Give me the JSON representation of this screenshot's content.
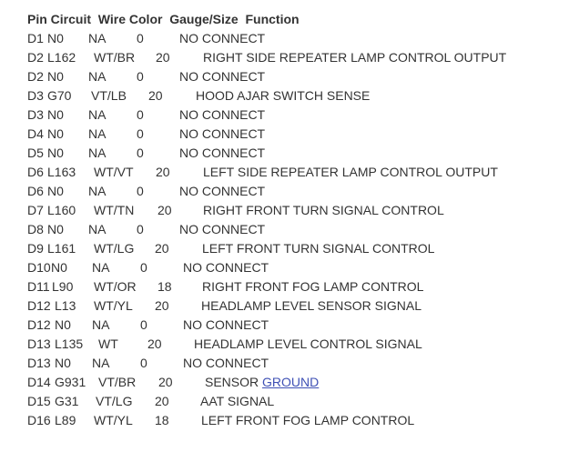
{
  "header": "Pin Circuit  Wire Color  Gauge/Size  Function",
  "rows": [
    {
      "pin": "D1",
      "circuit": "N0",
      "wire": "NA",
      "gauge": "0",
      "function": "NO CONNECT"
    },
    {
      "pin": "D2",
      "circuit": "L162",
      "wire": "WT/BR",
      "gauge": "20",
      "function": "RIGHT SIDE REPEATER LAMP CONTROL OUTPUT"
    },
    {
      "pin": "D2",
      "circuit": "N0",
      "wire": "NA",
      "gauge": "0",
      "function": "NO CONNECT"
    },
    {
      "pin": "D3",
      "circuit": "G70",
      "wire": "VT/LB",
      "gauge": "20",
      "function": "HOOD AJAR SWITCH SENSE"
    },
    {
      "pin": "D3",
      "circuit": "N0",
      "wire": "NA",
      "gauge": "0",
      "function": "NO CONNECT"
    },
    {
      "pin": "D4",
      "circuit": "N0",
      "wire": "NA",
      "gauge": "0",
      "function": "NO CONNECT"
    },
    {
      "pin": "D5",
      "circuit": "N0",
      "wire": "NA",
      "gauge": "0",
      "function": "NO CONNECT"
    },
    {
      "pin": "D6",
      "circuit": "L163",
      "wire": "WT/VT",
      "gauge": "20",
      "function": "LEFT SIDE REPEATER LAMP CONTROL OUTPUT"
    },
    {
      "pin": "D6",
      "circuit": "N0",
      "wire": "NA",
      "gauge": "0",
      "function": "NO CONNECT"
    },
    {
      "pin": "D7",
      "circuit": "L160",
      "wire": "WT/TN",
      "gauge": "20",
      "function": "RIGHT FRONT TURN SIGNAL CONTROL"
    },
    {
      "pin": "D8",
      "circuit": "N0",
      "wire": "NA",
      "gauge": "0",
      "function": "NO CONNECT"
    },
    {
      "pin": "D9",
      "circuit": "L161",
      "wire": "WT/LG",
      "gauge": "20",
      "function": "LEFT FRONT TURN SIGNAL CONTROL"
    },
    {
      "pin": "D10",
      "circuit": "N0",
      "wire": "NA",
      "gauge": "0",
      "function": "NO CONNECT"
    },
    {
      "pin": "D11",
      "circuit": "L90",
      "wire": "WT/OR",
      "gauge": "18",
      "function": "RIGHT FRONT FOG LAMP CONTROL"
    },
    {
      "pin": "D12",
      "circuit": "L13",
      "wire": "WT/YL",
      "gauge": "20",
      "function": "HEADLAMP LEVEL SENSOR SIGNAL"
    },
    {
      "pin": "D12",
      "circuit": "N0",
      "wire": "NA",
      "gauge": "0",
      "function": "NO CONNECT"
    },
    {
      "pin": "D13",
      "circuit": "L135",
      "wire": "WT",
      "gauge": "20",
      "function": "HEADLAMP LEVEL CONTROL SIGNAL"
    },
    {
      "pin": "D13",
      "circuit": "N0",
      "wire": "NA",
      "gauge": "0",
      "function": "NO CONNECT"
    },
    {
      "pin": "D14",
      "circuit": "G931",
      "wire": "VT/BR",
      "gauge": "20",
      "function": "SENSOR ",
      "function_link": "GROUND"
    },
    {
      "pin": "D15",
      "circuit": "G31",
      "wire": "VT/LG",
      "gauge": "20",
      "function": "AAT SIGNAL"
    },
    {
      "pin": "D16",
      "circuit": "L89",
      "wire": "WT/YL",
      "gauge": "18",
      "function": "LEFT FRONT FOG LAMP CONTROL"
    }
  ],
  "colors": {
    "text": "#333333",
    "link": "#3f51b5"
  }
}
